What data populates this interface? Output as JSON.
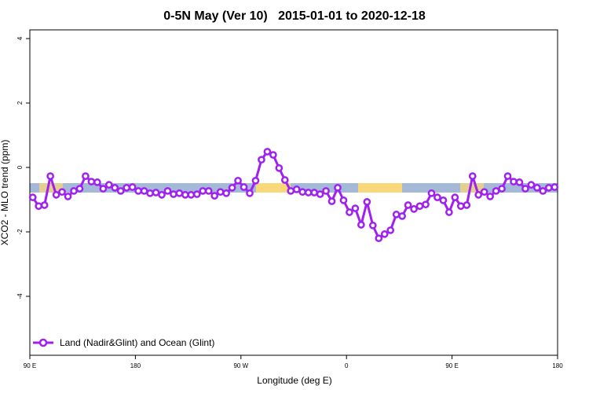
{
  "chart_data": {
    "type": "line",
    "title": "0-5N May (Ver 10)   2015-01-01 to 2020-12-18",
    "x_label": "Longitude (deg E)",
    "y_label": "XCO2 - MLO trend (ppm)",
    "xlim": [
      90,
      540
    ],
    "ylim": [
      -5.83,
      4.27
    ],
    "xticks": [
      {
        "value": 90,
        "label": "90 E"
      },
      {
        "value": 180,
        "label": "180"
      },
      {
        "value": 270,
        "label": "90 W"
      },
      {
        "value": 360,
        "label": "0"
      },
      {
        "value": 450,
        "label": "90 E"
      },
      {
        "value": 540,
        "label": "180"
      }
    ],
    "yticks": [
      4,
      2,
      0,
      -2,
      -4
    ],
    "legend_position": "bottom-left",
    "x": [
      92.5,
      97.5,
      102.5,
      107.5,
      112.5,
      117.5,
      122.5,
      127.5,
      132.5,
      137.5,
      142.5,
      147.5,
      152.5,
      157.5,
      162.5,
      167.5,
      172.5,
      177.5,
      182.5,
      187.5,
      192.5,
      197.5,
      202.5,
      207.5,
      212.5,
      217.5,
      222.5,
      227.5,
      232.5,
      237.5,
      242.5,
      247.5,
      252.5,
      257.5,
      262.5,
      267.5,
      272.5,
      277.5,
      282.5,
      287.5,
      292.5,
      297.5,
      302.5,
      307.5,
      312.5,
      317.5,
      322.5,
      327.5,
      332.5,
      337.5,
      342.5,
      347.5,
      352.5,
      357.5,
      362.5,
      367.5,
      372.5,
      377.5,
      382.5,
      387.5,
      392.5,
      397.5,
      402.5,
      407.5,
      412.5,
      417.5,
      422.5,
      427.5,
      432.5,
      437.5,
      442.5,
      447.5,
      452.5,
      457.5,
      462.5,
      467.5,
      472.5,
      477.5,
      482.5,
      487.5,
      492.5,
      497.5,
      502.5,
      507.5,
      512.5,
      517.5,
      522.5,
      527.5,
      532.5,
      537.5
    ],
    "series": [
      {
        "name": "Land (Nadir&Glint) and Ocean (Glint)",
        "color": "#a020f0",
        "values": [
          -0.93,
          -1.2,
          -1.17,
          -0.27,
          -0.85,
          -0.76,
          -0.9,
          -0.73,
          -0.66,
          -0.27,
          -0.44,
          -0.46,
          -0.66,
          -0.54,
          -0.63,
          -0.73,
          -0.63,
          -0.61,
          -0.73,
          -0.73,
          -0.8,
          -0.78,
          -0.85,
          -0.73,
          -0.83,
          -0.8,
          -0.85,
          -0.85,
          -0.83,
          -0.73,
          -0.73,
          -0.88,
          -0.76,
          -0.8,
          -0.63,
          -0.41,
          -0.61,
          -0.8,
          -0.41,
          0.24,
          0.49,
          0.39,
          -0.02,
          -0.39,
          -0.73,
          -0.68,
          -0.76,
          -0.78,
          -0.78,
          -0.83,
          -0.73,
          -1.05,
          -0.63,
          -1.02,
          -1.39,
          -1.27,
          -1.78,
          -1.07,
          -1.8,
          -2.2,
          -2.07,
          -1.95,
          -1.46,
          -1.51,
          -1.17,
          -1.29,
          -1.2,
          -1.15,
          -0.8,
          -0.93,
          -1.02,
          -1.39,
          -0.93,
          -1.2,
          -1.17,
          -0.27,
          -0.85,
          -0.76,
          -0.9,
          -0.73,
          -0.66,
          -0.27,
          -0.44,
          -0.46,
          -0.66,
          -0.54,
          -0.63,
          -0.73,
          -0.63,
          -0.61
        ]
      }
    ]
  }
}
